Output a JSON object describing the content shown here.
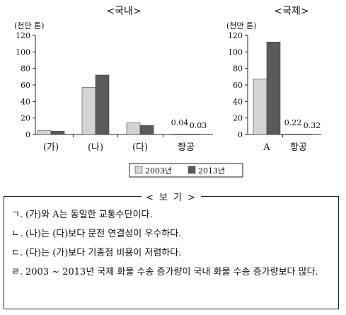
{
  "chart_data": [
    {
      "type": "bar",
      "title": "<국내>",
      "ylabel": "(천만 톤)",
      "ylim": [
        0,
        120
      ],
      "yticks": [
        0,
        20,
        40,
        60,
        80,
        100,
        120
      ],
      "categories": [
        "(가)",
        "(나)",
        "(다)",
        "항공"
      ],
      "series": [
        {
          "name": "2003년",
          "values": [
            5,
            57,
            14,
            0.04
          ]
        },
        {
          "name": "2013년",
          "values": [
            4,
            72,
            11,
            0.03
          ]
        }
      ],
      "data_labels": [
        {
          "category": "항공",
          "series": "2003년",
          "text": "0.04"
        },
        {
          "category": "항공",
          "series": "2013년",
          "text": "0.03"
        }
      ],
      "colors": [
        "#d4d4d4",
        "#5a5a5a"
      ]
    },
    {
      "type": "bar",
      "title": "<국제>",
      "ylabel": "(천만 톤)",
      "ylim": [
        0,
        120
      ],
      "yticks": [
        0,
        20,
        40,
        60,
        80,
        100,
        120
      ],
      "categories": [
        "A",
        "항공"
      ],
      "series": [
        {
          "name": "2003년",
          "values": [
            67,
            0.22
          ]
        },
        {
          "name": "2013년",
          "values": [
            112,
            0.32
          ]
        }
      ],
      "data_labels": [
        {
          "category": "항공",
          "series": "2003년",
          "text": "0.22"
        },
        {
          "category": "항공",
          "series": "2013년",
          "text": "0.32"
        }
      ],
      "colors": [
        "#d4d4d4",
        "#5a5a5a"
      ]
    }
  ],
  "legend": [
    {
      "name": "2003년",
      "color": "#d4d4d4"
    },
    {
      "name": "2013년",
      "color": "#5a5a5a"
    }
  ],
  "bogi": {
    "title": "< 보 기 >",
    "items": [
      {
        "mark": "ㄱ.",
        "text": "(가)와 A는 동일한 교통수단이다."
      },
      {
        "mark": "ㄴ.",
        "text": "(나)는 (다)보다 문전 연결성이 우수하다."
      },
      {
        "mark": "ㄷ.",
        "text": "(다)는 (가)보다 기종점 비용이 저렴하다."
      },
      {
        "mark": "ㄹ.",
        "text": "2003 ~ 2013년 국제 화물 수송 증가량이 국내 화물 수송 증가량보다 많다."
      }
    ]
  }
}
